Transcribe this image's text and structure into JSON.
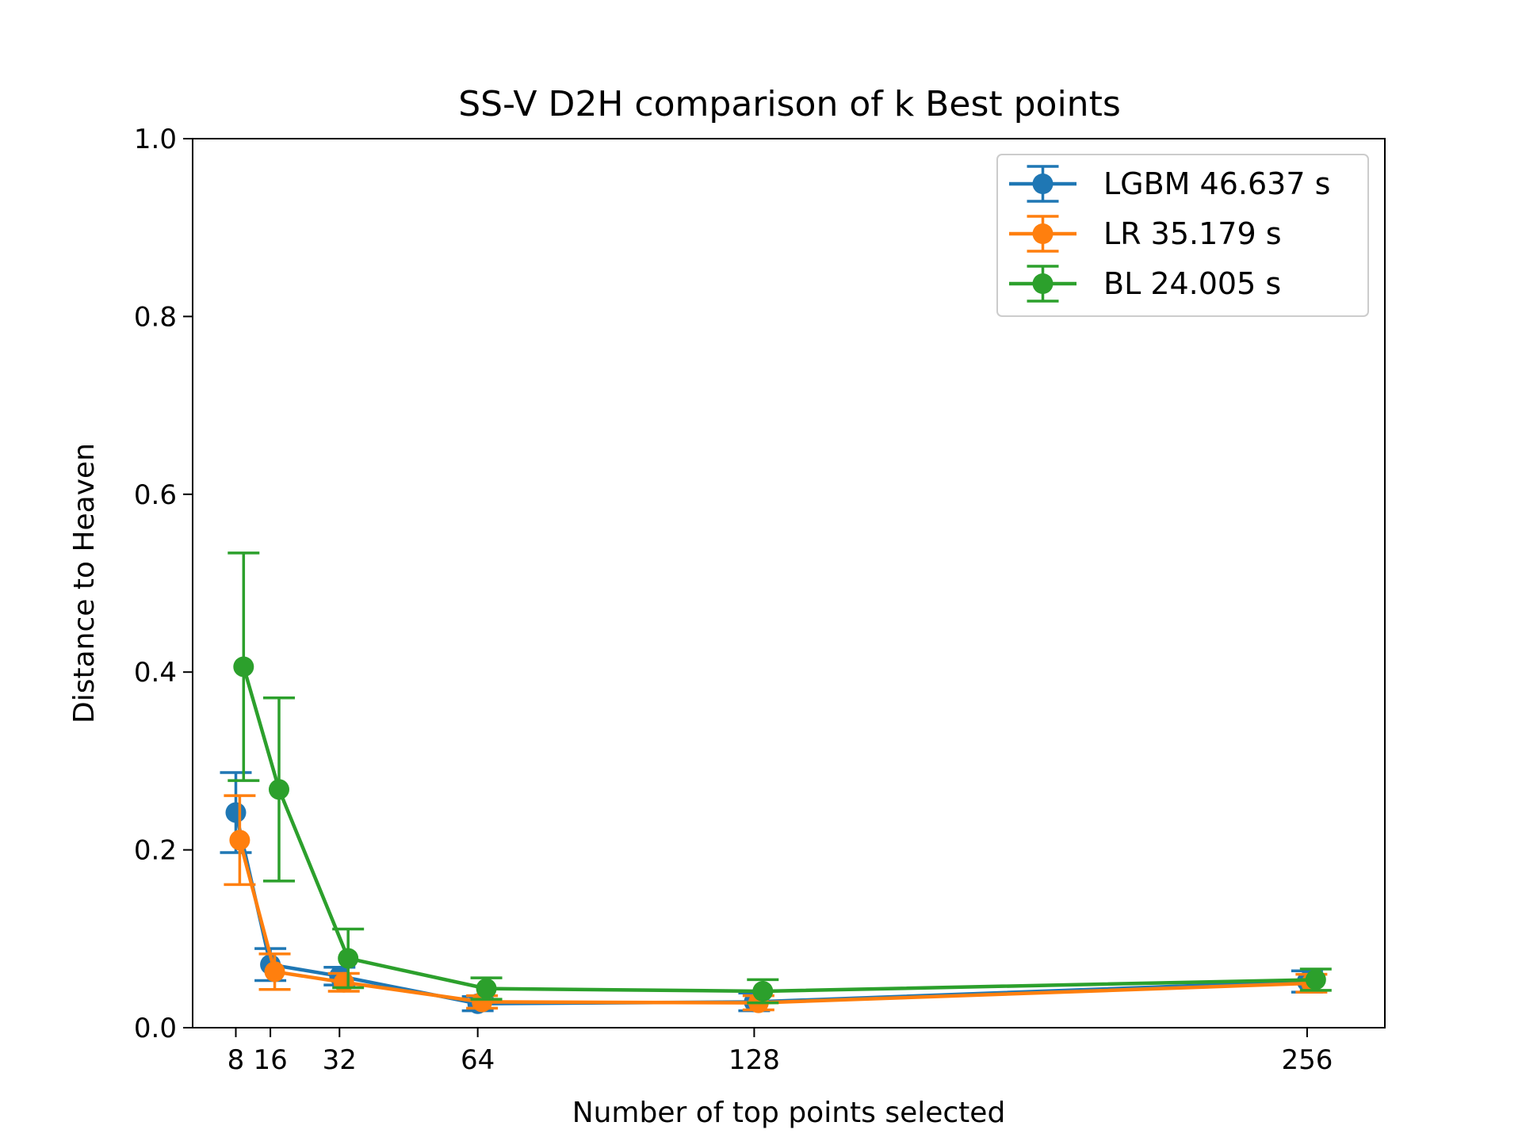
{
  "chart_data": {
    "type": "line",
    "title": "SS-V D2H comparison of k Best points",
    "xlabel": "Number of top points selected",
    "ylabel": "Distance to Heaven",
    "x_ticks": [
      8,
      16,
      32,
      64,
      128,
      256
    ],
    "x_tick_labels": [
      "8",
      "16",
      "32",
      "64",
      "128",
      "256"
    ],
    "y_ticks": [
      0.0,
      0.2,
      0.4,
      0.6,
      0.8,
      1.0
    ],
    "y_tick_labels": [
      "0.0",
      "0.2",
      "0.4",
      "0.6",
      "0.8",
      "1.0"
    ],
    "ylim": [
      0,
      1.0
    ],
    "xlim": [
      -2,
      274
    ],
    "grid": false,
    "legend_position": "top-right",
    "series": [
      {
        "name": "LGBM 46.637 s",
        "color": "#1f77b4",
        "x": [
          8,
          16,
          32,
          64,
          128,
          256
        ],
        "y": [
          0.242,
          0.071,
          0.058,
          0.027,
          0.029,
          0.052
        ],
        "yerr": [
          0.045,
          0.018,
          0.01,
          0.008,
          0.01,
          0.012
        ]
      },
      {
        "name": "LR 35.179 s",
        "color": "#ff7f0e",
        "x": [
          8.9,
          17,
          33,
          65,
          129,
          257
        ],
        "y": [
          0.211,
          0.063,
          0.051,
          0.029,
          0.028,
          0.05
        ],
        "yerr": [
          0.05,
          0.02,
          0.01,
          0.007,
          0.008,
          0.01
        ]
      },
      {
        "name": "BL 24.005 s",
        "color": "#2ca02c",
        "x": [
          9.8,
          18,
          34,
          66,
          130,
          258
        ],
        "y": [
          0.406,
          0.268,
          0.078,
          0.044,
          0.041,
          0.054
        ],
        "yerr": [
          0.128,
          0.103,
          0.033,
          0.012,
          0.013,
          0.012
        ]
      }
    ]
  }
}
